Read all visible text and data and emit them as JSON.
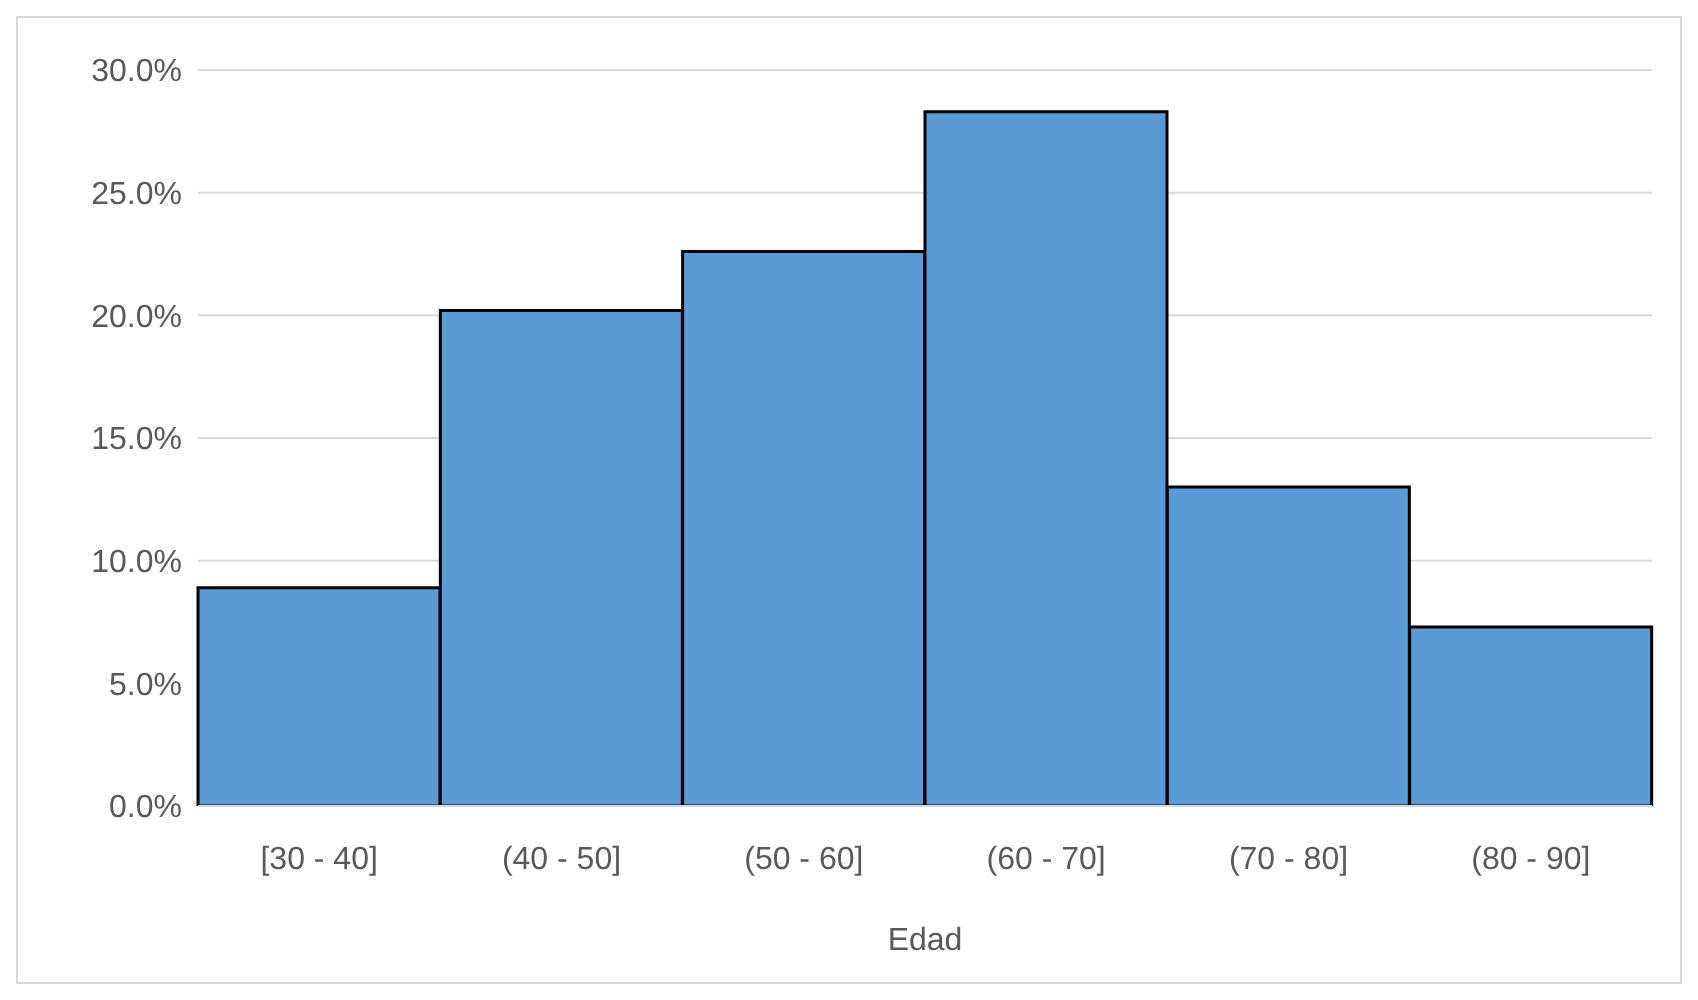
{
  "chart_data": {
    "type": "bar",
    "xlabel": "Edad",
    "categories": [
      "[30 -  40]",
      "(40 -  50]",
      "(50 - 60]",
      "(60 - 70]",
      "(70 - 80]",
      "(80 - 90]"
    ],
    "values": [
      8.9,
      20.2,
      22.6,
      28.3,
      13.0,
      7.3
    ],
    "color": "#5b9bd5",
    "ylim": [
      0,
      30
    ],
    "yticks": [
      {
        "value": 0,
        "label": "0.0%"
      },
      {
        "value": 5,
        "label": "5.0%"
      },
      {
        "value": 10,
        "label": "10.0%"
      },
      {
        "value": 15,
        "label": "15.0%"
      },
      {
        "value": 20,
        "label": "20.0%"
      },
      {
        "value": 25,
        "label": "25.0%"
      },
      {
        "value": 30,
        "label": "30.0%"
      }
    ],
    "grid": "y"
  }
}
